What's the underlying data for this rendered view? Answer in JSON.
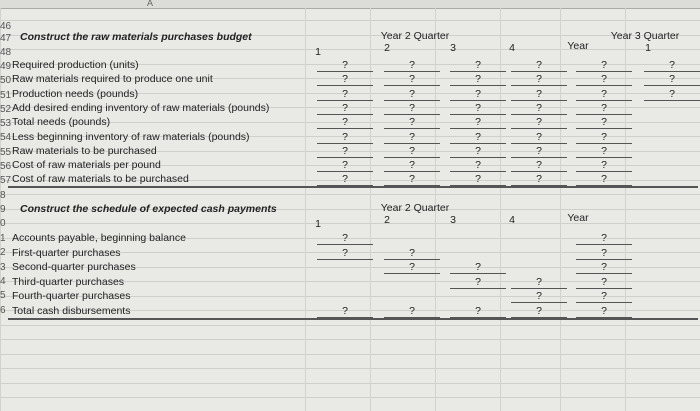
{
  "column_letter": "A",
  "row_numbers": [
    "46",
    "47",
    "48",
    "49",
    "50",
    "51",
    "52",
    "53",
    "54",
    "55",
    "56",
    "57",
    "8",
    "9",
    "0",
    "1",
    "2",
    "3",
    "4",
    "5",
    "6"
  ],
  "budget": {
    "title": "Construct the raw materials purchases budget",
    "group_header": "Year 2 Quarter",
    "next_group_header": "Year 3 Quarter",
    "columns": [
      "1",
      "2",
      "3",
      "4",
      "Year",
      "1"
    ],
    "rows": [
      {
        "label": "Required production (units)",
        "cells": [
          "?",
          "?",
          "?",
          "?",
          "?",
          "?"
        ]
      },
      {
        "label": "Raw materials required to produce one unit",
        "cells": [
          "?",
          "?",
          "?",
          "?",
          "?",
          "?"
        ]
      },
      {
        "label": "Production needs (pounds)",
        "cells": [
          "?",
          "?",
          "?",
          "?",
          "?",
          "?"
        ]
      },
      {
        "label": "Add desired ending inventory of raw materials (pounds)",
        "cells": [
          "?",
          "?",
          "?",
          "?",
          "?",
          null
        ]
      },
      {
        "label": "Total needs (pounds)",
        "cells": [
          "?",
          "?",
          "?",
          "?",
          "?",
          null
        ]
      },
      {
        "label": "Less beginning inventory of raw materials (pounds)",
        "cells": [
          "?",
          "?",
          "?",
          "?",
          "?",
          null
        ]
      },
      {
        "label": "Raw materials to be purchased",
        "cells": [
          "?",
          "?",
          "?",
          "?",
          "?",
          null
        ]
      },
      {
        "label": "Cost of raw materials per pound",
        "cells": [
          "?",
          "?",
          "?",
          "?",
          "?",
          null
        ]
      },
      {
        "label": "Cost of raw materials to be purchased",
        "cells": [
          "?",
          "?",
          "?",
          "?",
          "?",
          null
        ]
      }
    ]
  },
  "payments": {
    "title": "Construct the schedule of expected cash payments",
    "group_header": "Year 2 Quarter",
    "columns": [
      "1",
      "2",
      "3",
      "4",
      "Year"
    ],
    "rows": [
      {
        "label": "Accounts payable, beginning balance",
        "cells": [
          "?",
          null,
          null,
          null,
          "?"
        ]
      },
      {
        "label": "First-quarter purchases",
        "cells": [
          "?",
          "?",
          null,
          null,
          "?"
        ]
      },
      {
        "label": "Second-quarter purchases",
        "cells": [
          null,
          "?",
          "?",
          null,
          "?"
        ]
      },
      {
        "label": "Third-quarter purchases",
        "cells": [
          null,
          null,
          "?",
          "?",
          "?"
        ]
      },
      {
        "label": "Fourth-quarter purchases",
        "cells": [
          null,
          null,
          null,
          "?",
          "?"
        ]
      },
      {
        "label": "Total cash disbursements",
        "cells": [
          "?",
          "?",
          "?",
          "?",
          "?"
        ]
      }
    ]
  }
}
